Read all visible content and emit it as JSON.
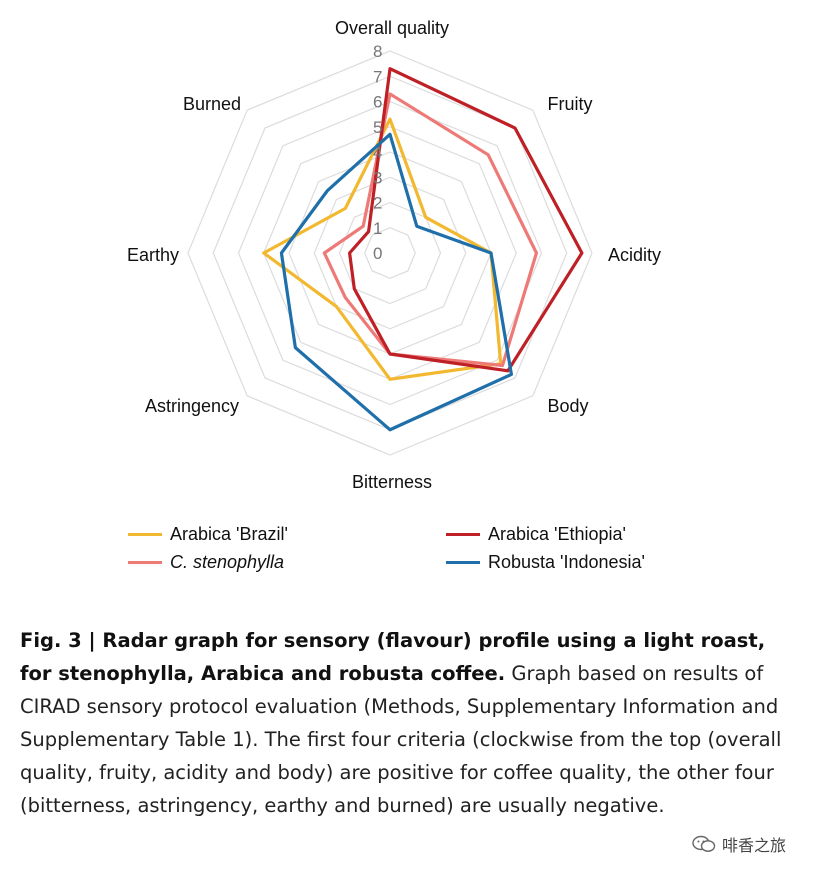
{
  "chart_data": {
    "type": "radar",
    "axes": [
      "Overall quality",
      "Fruity",
      "Acidity",
      "Body",
      "Bitterness",
      "Astringency",
      "Earthy",
      "Burned"
    ],
    "tick_labels": [
      "0",
      "1",
      "2",
      "3",
      "4",
      "5",
      "6",
      "7",
      "8"
    ],
    "range": [
      0,
      8
    ],
    "grid": true,
    "legend_placement": "bottom",
    "series": [
      {
        "name": "Arabica 'Brazil'",
        "italic": false,
        "color": "#F2B830",
        "values": [
          5.3,
          2.0,
          4.0,
          6.2,
          5.0,
          3.0,
          5.0,
          2.5
        ]
      },
      {
        "name": "C. stenophylla",
        "italic": true,
        "color": "#EE7A78",
        "values": [
          6.3,
          5.5,
          5.8,
          6.3,
          4.0,
          2.5,
          2.6,
          1.5
        ]
      },
      {
        "name": "Arabica 'Ethiopia'",
        "italic": false,
        "color": "#BE2026",
        "values": [
          7.3,
          7.0,
          7.6,
          6.6,
          4.0,
          2.0,
          1.6,
          1.2
        ]
      },
      {
        "name": "Robusta 'Indonesia'",
        "italic": false,
        "color": "#1F6FAA",
        "values": [
          4.7,
          1.5,
          4.0,
          6.8,
          7.0,
          5.3,
          4.3,
          3.5
        ]
      }
    ]
  },
  "caption": {
    "bold": "Fig. 3 | Radar graph for sensory (flavour) profile using a light roast, for stenophylla, Arabica and robusta coffee.",
    "text": " Graph based on results of CIRAD sensory protocol evaluation (Methods, Supplementary Information and Supplementary Table 1). The first four criteria (clockwise from the top (overall quality, fruity, acidity and body) are positive for coffee quality, the other four (bitterness, astringency, earthy and burned) are usually negative."
  },
  "watermark": {
    "icon": "wechat-icon",
    "text": "啡香之旅"
  }
}
